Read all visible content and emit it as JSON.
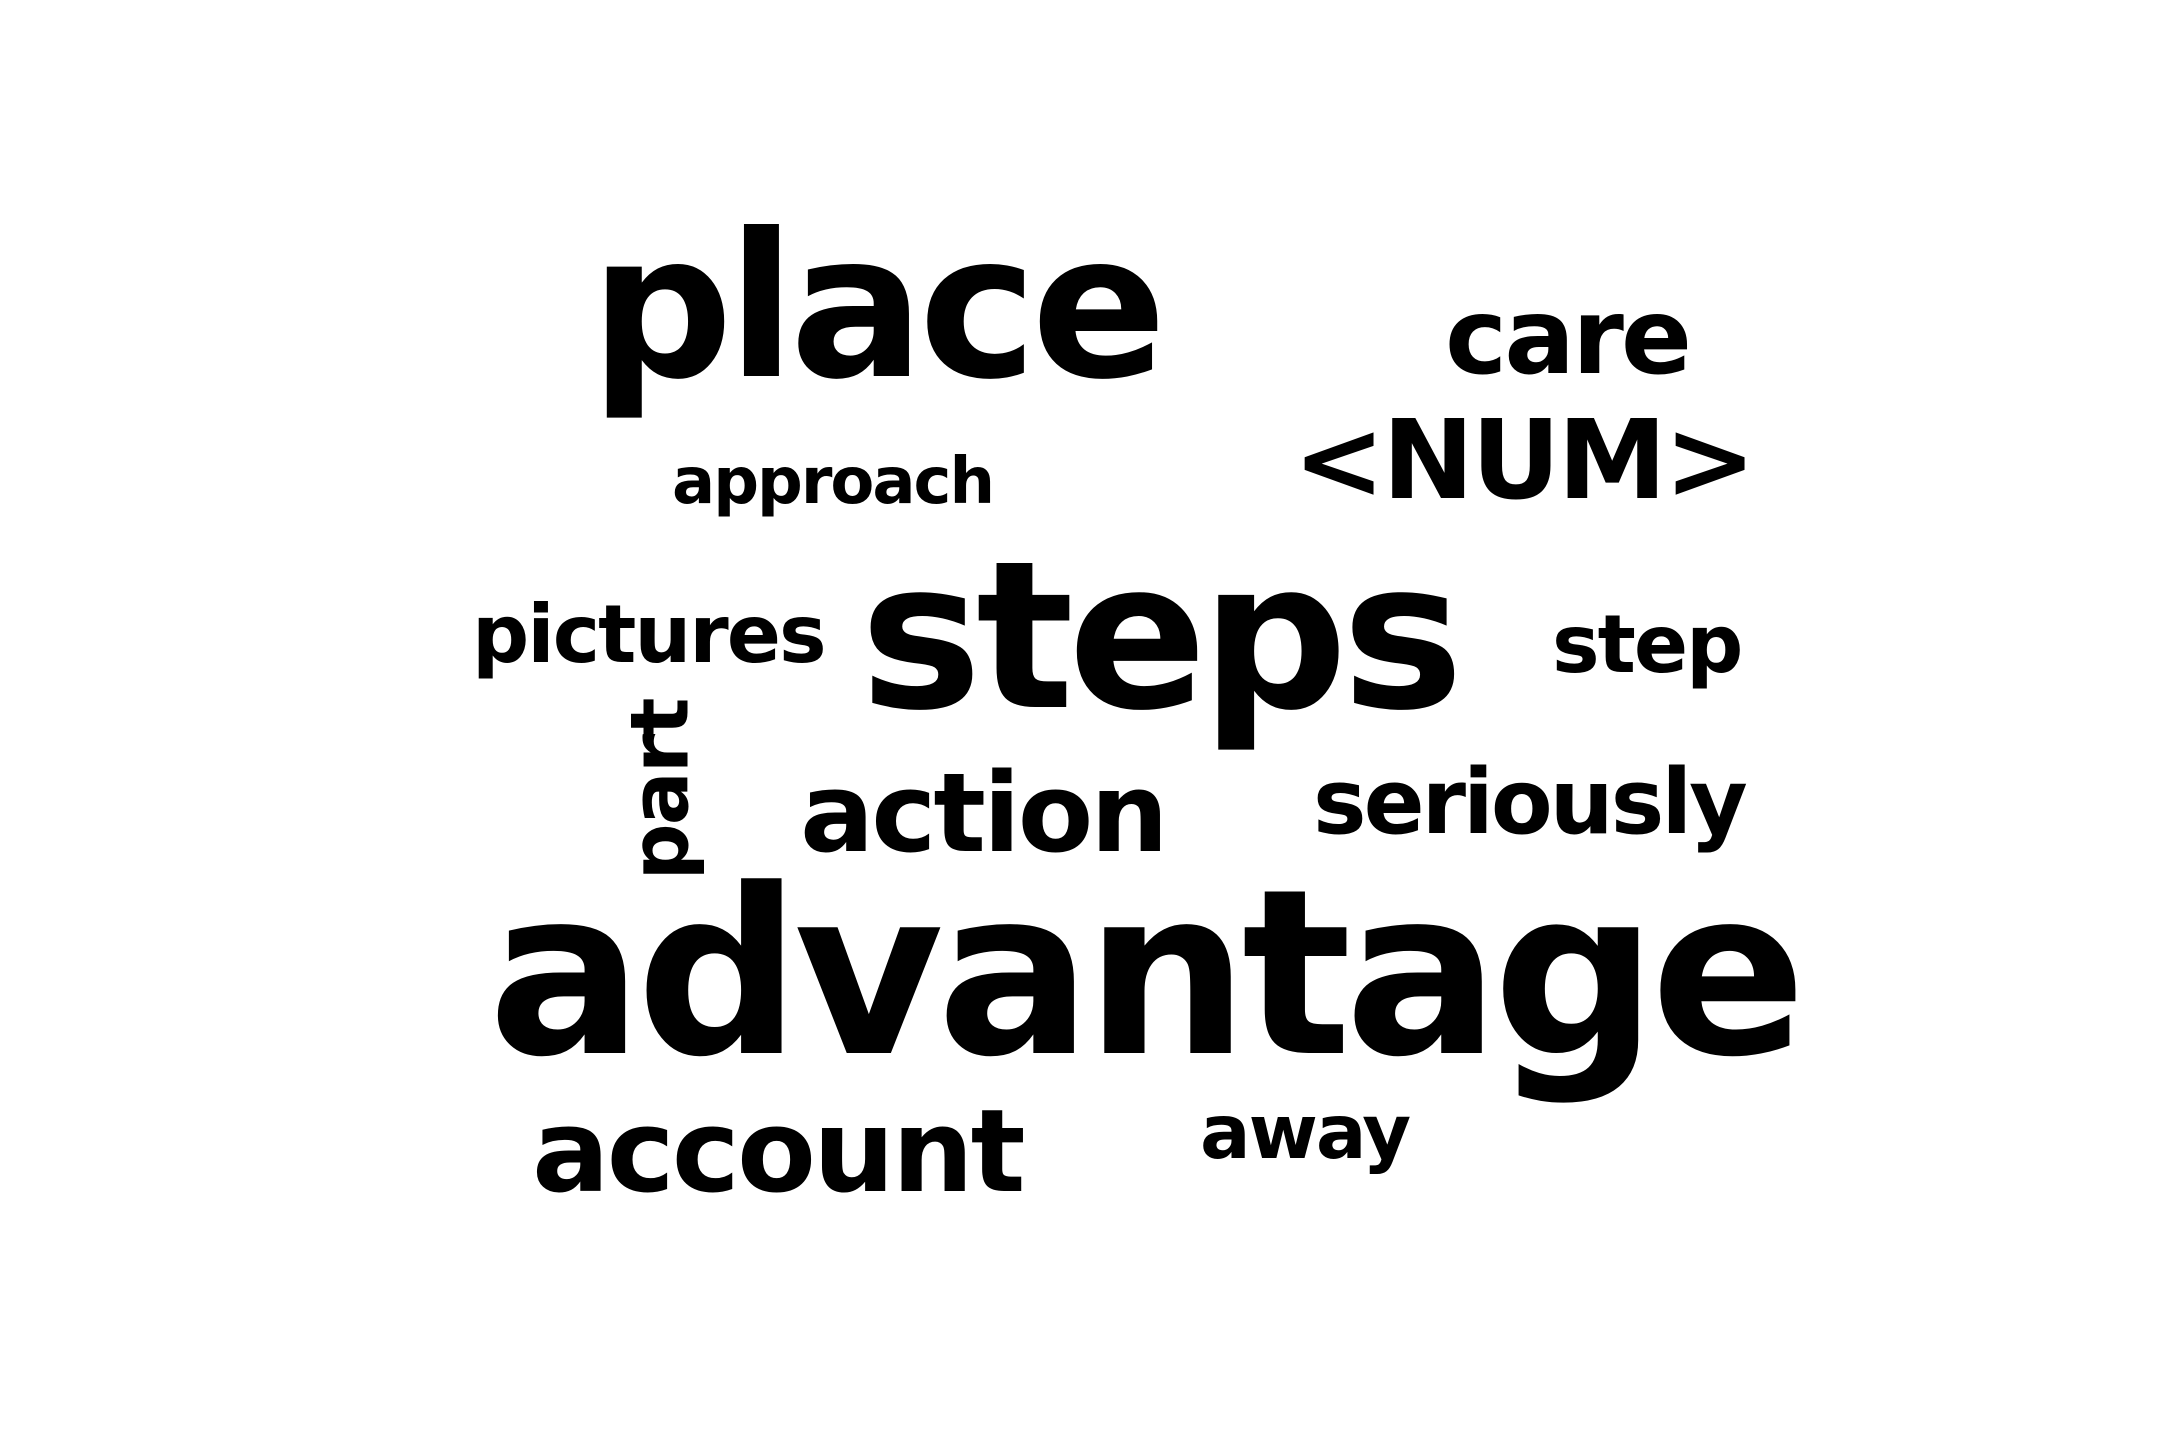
{
  "word_cloud": {
    "colors": {
      "background": "#ffffff",
      "text": "#000000"
    },
    "words": [
      {
        "text": "place",
        "size": "large",
        "orientation": "horizontal"
      },
      {
        "text": "care",
        "size": "medium",
        "orientation": "horizontal"
      },
      {
        "text": "<NUM>",
        "size": "medium",
        "orientation": "horizontal"
      },
      {
        "text": "approach",
        "size": "small",
        "orientation": "horizontal"
      },
      {
        "text": "steps",
        "size": "large",
        "orientation": "horizontal"
      },
      {
        "text": "pictures",
        "size": "small",
        "orientation": "horizontal"
      },
      {
        "text": "step",
        "size": "small",
        "orientation": "horizontal"
      },
      {
        "text": "part",
        "size": "small",
        "orientation": "vertical"
      },
      {
        "text": "action",
        "size": "medium",
        "orientation": "horizontal"
      },
      {
        "text": "seriously",
        "size": "small",
        "orientation": "horizontal"
      },
      {
        "text": "advantage",
        "size": "largest",
        "orientation": "horizontal"
      },
      {
        "text": "account",
        "size": "medium",
        "orientation": "horizontal"
      },
      {
        "text": "away",
        "size": "small",
        "orientation": "horizontal"
      }
    ]
  }
}
